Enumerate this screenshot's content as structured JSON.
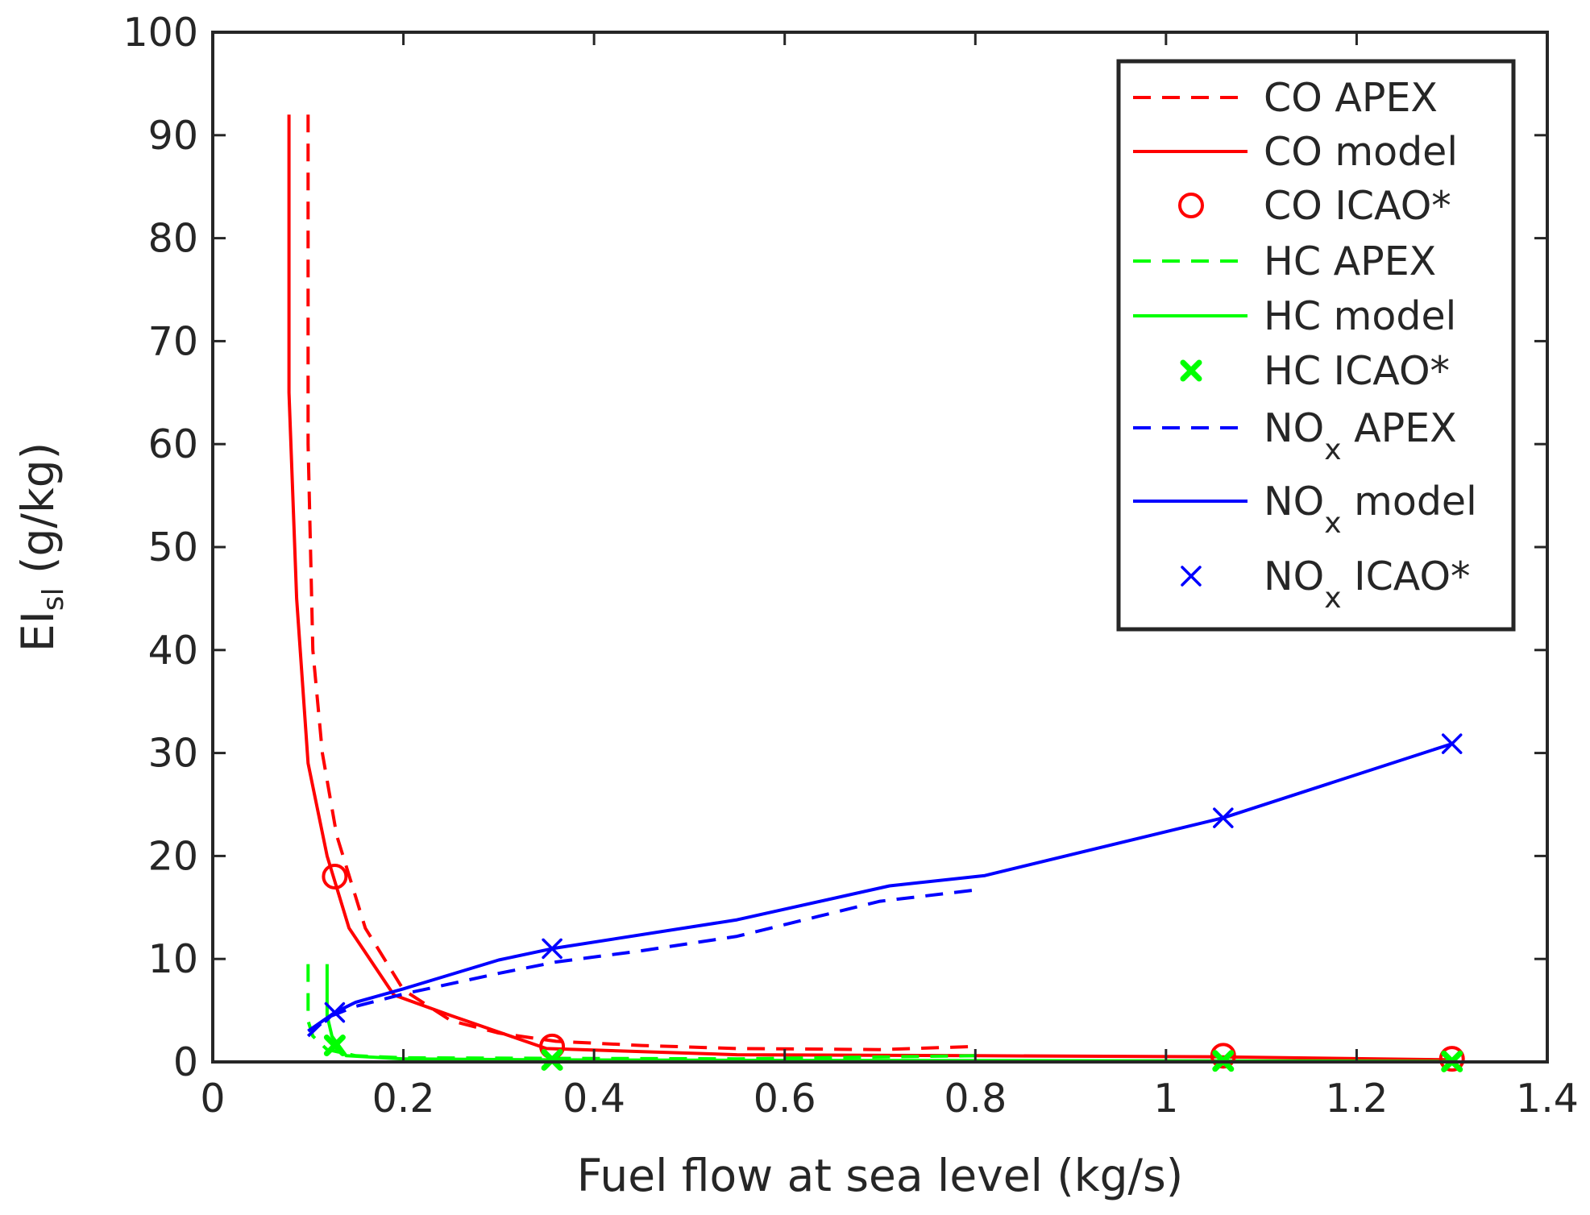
{
  "chart_data": {
    "type": "line",
    "title": "",
    "xlabel": "Fuel flow at sea level (kg/s)",
    "ylabel": {
      "main": "EI",
      "sub": "sl",
      "unit": " (g/kg)"
    },
    "xlim": [
      0,
      1.4
    ],
    "ylim": [
      0,
      100
    ],
    "xticks": [
      0,
      0.2,
      0.4,
      0.6,
      0.8,
      1,
      1.2,
      1.4
    ],
    "xtick_labels": [
      "0",
      "0.2",
      "0.4",
      "0.6",
      "0.8",
      "1",
      "1.2",
      "1.4"
    ],
    "yticks": [
      0,
      10,
      20,
      30,
      40,
      50,
      60,
      70,
      80,
      90,
      100
    ],
    "ytick_labels": [
      "0",
      "10",
      "20",
      "30",
      "40",
      "50",
      "60",
      "70",
      "80",
      "90",
      "100"
    ],
    "grid": false,
    "legend_position": "top-right",
    "colors": {
      "CO": "#ff0000",
      "HC": "#00ff00",
      "NOx": "#0000ff",
      "axis": "#262626"
    },
    "series": [
      {
        "id": "co-apex",
        "name": "CO APEX",
        "species": "CO",
        "suffix": " APEX",
        "style": "dashed",
        "color": "#ff0000",
        "x": [
          0.1,
          0.1,
          0.105,
          0.115,
          0.13,
          0.16,
          0.2,
          0.25,
          0.3,
          0.36,
          0.45,
          0.55,
          0.7,
          0.8
        ],
        "y": [
          92,
          60,
          40,
          30,
          22,
          13,
          7,
          4,
          2.8,
          2.0,
          1.6,
          1.3,
          1.2,
          1.5
        ]
      },
      {
        "id": "co-model",
        "name": "CO model",
        "species": "CO",
        "suffix": " model",
        "style": "solid",
        "color": "#ff0000",
        "x": [
          0.08,
          0.08,
          0.088,
          0.1,
          0.12,
          0.143,
          0.19,
          0.25,
          0.35,
          0.55,
          0.8,
          1.05,
          1.3
        ],
        "y": [
          92,
          65,
          45,
          29,
          20,
          13,
          6.5,
          4.5,
          1.3,
          0.7,
          0.6,
          0.5,
          0.2
        ]
      },
      {
        "id": "co-icao",
        "name": "CO ICAO*",
        "species": "CO",
        "suffix": " ICAO*",
        "style": "circle",
        "color": "#ff0000",
        "x": [
          0.128,
          0.356,
          1.06,
          1.3
        ],
        "y": [
          18,
          1.5,
          0.6,
          0.3
        ]
      },
      {
        "id": "hc-apex",
        "name": "HC APEX",
        "species": "HC",
        "suffix": " APEX",
        "style": "dashed",
        "color": "#00ff00",
        "x": [
          0.1,
          0.1,
          0.105,
          0.12,
          0.15,
          0.2,
          0.35,
          0.55,
          0.8
        ],
        "y": [
          9.5,
          4,
          2.5,
          1.2,
          0.6,
          0.4,
          0.35,
          0.3,
          0.6
        ]
      },
      {
        "id": "hc-model",
        "name": "HC model",
        "species": "HC",
        "suffix": " model",
        "style": "solid",
        "color": "#00ff00",
        "x": [
          0.12,
          0.12,
          0.125,
          0.14,
          0.2,
          0.35,
          0.6,
          1.05,
          1.3
        ],
        "y": [
          9.5,
          4.5,
          2.5,
          0.6,
          0.3,
          0.2,
          0.15,
          0.1,
          0.05
        ]
      },
      {
        "id": "hc-icao",
        "name": "HC ICAO*",
        "species": "HC",
        "suffix": " ICAO*",
        "style": "x-bold",
        "color": "#00ff00",
        "x": [
          0.128,
          0.356,
          1.06,
          1.3
        ],
        "y": [
          1.6,
          0.2,
          0.1,
          0.05
        ]
      },
      {
        "id": "nox-apex",
        "name": "NOx APEX",
        "species": "NO",
        "sub": "x",
        "suffix": " APEX",
        "style": "dashed",
        "color": "#0000ff",
        "x": [
          0.1,
          0.12,
          0.15,
          0.2,
          0.3,
          0.36,
          0.45,
          0.55,
          0.7,
          0.8
        ],
        "y": [
          2.5,
          4.3,
          5.4,
          6.6,
          8.6,
          9.7,
          10.8,
          12.2,
          15.6,
          16.7
        ]
      },
      {
        "id": "nox-model",
        "name": "NOx model",
        "species": "NO",
        "sub": "x",
        "suffix": " model",
        "style": "solid",
        "color": "#0000ff",
        "x": [
          0.1,
          0.128,
          0.15,
          0.2,
          0.3,
          0.356,
          0.55,
          0.71,
          0.81,
          1.06,
          1.3
        ],
        "y": [
          3.0,
          4.8,
          5.8,
          7.1,
          9.9,
          11.0,
          13.8,
          17.1,
          18.1,
          23.7,
          30.9
        ]
      },
      {
        "id": "nox-icao",
        "name": "NOx ICAO*",
        "species": "NO",
        "sub": "x",
        "suffix": " ICAO*",
        "style": "x",
        "color": "#0000ff",
        "x": [
          0.128,
          0.356,
          1.06,
          1.3
        ],
        "y": [
          4.8,
          11.0,
          23.7,
          30.9
        ]
      }
    ]
  }
}
